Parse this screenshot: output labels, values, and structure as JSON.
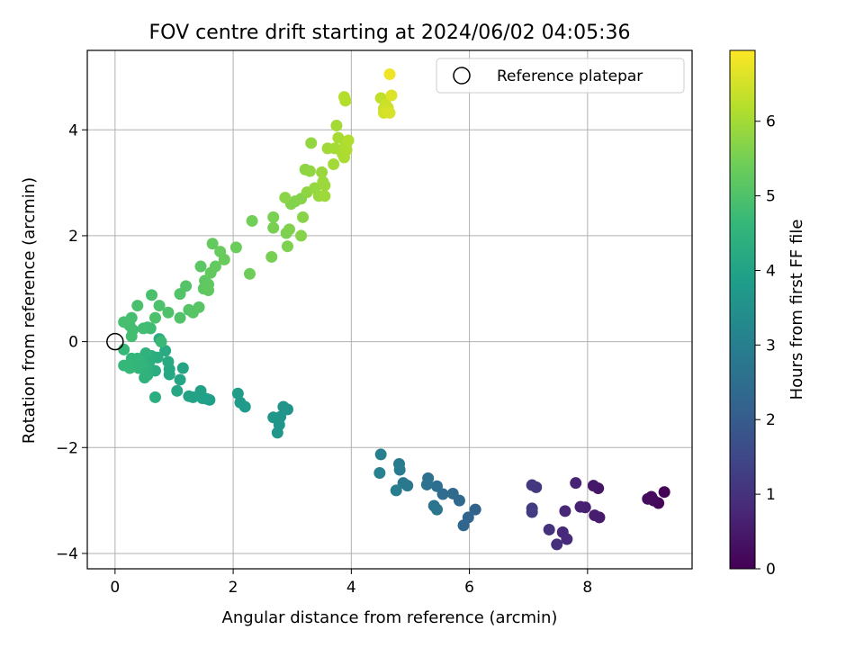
{
  "chart_data": {
    "type": "scatter",
    "title": "FOV centre drift starting at 2024/06/02 04:05:36",
    "xlabel": "Angular distance from reference (arcmin)",
    "ylabel": "Rotation from reference (arcmin)",
    "xlim": [
      -0.47,
      9.77
    ],
    "ylim": [
      -4.29,
      5.5
    ],
    "x_ticks": [
      0,
      2,
      4,
      6,
      8
    ],
    "y_ticks": [
      -4,
      -2,
      0,
      2,
      4
    ],
    "x_tick_labels": [
      "0",
      "2",
      "4",
      "6",
      "8"
    ],
    "y_tick_labels": [
      "−4",
      "−2",
      "0",
      "2",
      "4"
    ],
    "grid": true,
    "legend": {
      "placement": "top-right",
      "entries": [
        "Reference platepar"
      ]
    },
    "reference_point": {
      "x": 0,
      "y": 0
    },
    "colorbar": {
      "label": "Hours from first FF file",
      "colormap": "viridis",
      "range": [
        0,
        6.95
      ],
      "ticks": [
        0,
        1,
        2,
        3,
        4,
        5,
        6
      ],
      "tick_labels": [
        "0",
        "1",
        "2",
        "3",
        "4",
        "5",
        "6"
      ]
    },
    "points": [
      {
        "x": 9.3,
        "y": -2.84,
        "h": 0.05
      },
      {
        "x": 9.2,
        "y": -3.05,
        "h": 0.1
      },
      {
        "x": 9.12,
        "y": -3.0,
        "h": 0.15
      },
      {
        "x": 9.08,
        "y": -2.93,
        "h": 0.18
      },
      {
        "x": 9.02,
        "y": -2.97,
        "h": 0.22
      },
      {
        "x": 8.18,
        "y": -2.77,
        "h": 0.4
      },
      {
        "x": 8.1,
        "y": -2.72,
        "h": 0.45
      },
      {
        "x": 8.2,
        "y": -3.32,
        "h": 0.5
      },
      {
        "x": 8.12,
        "y": -3.28,
        "h": 0.55
      },
      {
        "x": 7.96,
        "y": -3.13,
        "h": 0.6
      },
      {
        "x": 7.88,
        "y": -3.12,
        "h": 0.65
      },
      {
        "x": 7.8,
        "y": -2.67,
        "h": 0.7
      },
      {
        "x": 7.62,
        "y": -3.2,
        "h": 0.75
      },
      {
        "x": 7.58,
        "y": -3.6,
        "h": 0.8
      },
      {
        "x": 7.65,
        "y": -3.73,
        "h": 0.85
      },
      {
        "x": 7.48,
        "y": -3.83,
        "h": 0.95
      },
      {
        "x": 7.35,
        "y": -3.55,
        "h": 1.0
      },
      {
        "x": 7.13,
        "y": -2.75,
        "h": 1.1
      },
      {
        "x": 7.06,
        "y": -2.71,
        "h": 1.15
      },
      {
        "x": 7.06,
        "y": -3.15,
        "h": 1.2
      },
      {
        "x": 7.06,
        "y": -3.22,
        "h": 1.25
      },
      {
        "x": 6.1,
        "y": -3.17,
        "h": 2.2
      },
      {
        "x": 5.98,
        "y": -3.32,
        "h": 2.25
      },
      {
        "x": 5.9,
        "y": -3.47,
        "h": 2.3
      },
      {
        "x": 5.83,
        "y": -3.0,
        "h": 2.35
      },
      {
        "x": 5.72,
        "y": -2.87,
        "h": 2.4
      },
      {
        "x": 5.55,
        "y": -2.88,
        "h": 2.45
      },
      {
        "x": 5.45,
        "y": -2.73,
        "h": 2.5
      },
      {
        "x": 5.3,
        "y": -2.58,
        "h": 2.55
      },
      {
        "x": 5.28,
        "y": -2.7,
        "h": 2.6
      },
      {
        "x": 5.4,
        "y": -3.1,
        "h": 2.65
      },
      {
        "x": 5.45,
        "y": -3.17,
        "h": 2.7
      },
      {
        "x": 4.95,
        "y": -2.72,
        "h": 2.75
      },
      {
        "x": 4.88,
        "y": -2.67,
        "h": 2.8
      },
      {
        "x": 4.81,
        "y": -2.31,
        "h": 2.85
      },
      {
        "x": 4.82,
        "y": -2.42,
        "h": 2.9
      },
      {
        "x": 4.76,
        "y": -2.81,
        "h": 2.95
      },
      {
        "x": 4.5,
        "y": -2.13,
        "h": 3.0
      },
      {
        "x": 4.48,
        "y": -2.48,
        "h": 3.05
      },
      {
        "x": 2.92,
        "y": -1.28,
        "h": 3.55
      },
      {
        "x": 2.85,
        "y": -1.23,
        "h": 3.58
      },
      {
        "x": 2.8,
        "y": -1.42,
        "h": 3.6
      },
      {
        "x": 2.78,
        "y": -1.57,
        "h": 3.62
      },
      {
        "x": 2.75,
        "y": -1.72,
        "h": 3.65
      },
      {
        "x": 2.68,
        "y": -1.43,
        "h": 3.68
      },
      {
        "x": 2.2,
        "y": -1.23,
        "h": 3.75
      },
      {
        "x": 2.12,
        "y": -1.15,
        "h": 3.78
      },
      {
        "x": 2.08,
        "y": -0.98,
        "h": 3.8
      },
      {
        "x": 1.6,
        "y": -1.1,
        "h": 3.9
      },
      {
        "x": 1.55,
        "y": -1.08,
        "h": 3.92
      },
      {
        "x": 1.48,
        "y": -1.07,
        "h": 3.94
      },
      {
        "x": 1.45,
        "y": -0.93,
        "h": 3.96
      },
      {
        "x": 1.32,
        "y": -1.05,
        "h": 3.98
      },
      {
        "x": 1.25,
        "y": -1.03,
        "h": 4.0
      },
      {
        "x": 1.15,
        "y": -0.5,
        "h": 4.05
      },
      {
        "x": 1.1,
        "y": -0.72,
        "h": 4.08
      },
      {
        "x": 1.05,
        "y": -0.93,
        "h": 4.1
      },
      {
        "x": 0.92,
        "y": -0.62,
        "h": 4.15
      },
      {
        "x": 0.92,
        "y": -0.52,
        "h": 4.18
      },
      {
        "x": 0.9,
        "y": -0.38,
        "h": 4.2
      },
      {
        "x": 0.85,
        "y": -0.17,
        "h": 4.22
      },
      {
        "x": 0.75,
        "y": 0.05,
        "h": 4.25
      },
      {
        "x": 0.72,
        "y": -0.3,
        "h": 4.28
      },
      {
        "x": 0.68,
        "y": -0.55,
        "h": 4.3
      },
      {
        "x": 0.68,
        "y": -1.05,
        "h": 4.32
      },
      {
        "x": 0.62,
        "y": -0.27,
        "h": 4.35
      },
      {
        "x": 0.58,
        "y": -0.38,
        "h": 4.38
      },
      {
        "x": 0.55,
        "y": -0.52,
        "h": 4.4
      },
      {
        "x": 0.55,
        "y": -0.48,
        "h": 4.42
      },
      {
        "x": 0.55,
        "y": -0.63,
        "h": 4.44
      },
      {
        "x": 0.52,
        "y": -0.22,
        "h": 4.46
      },
      {
        "x": 0.5,
        "y": -0.68,
        "h": 4.48
      },
      {
        "x": 0.48,
        "y": -0.45,
        "h": 4.5
      },
      {
        "x": 0.45,
        "y": -0.4,
        "h": 4.52
      },
      {
        "x": 0.4,
        "y": -0.5,
        "h": 4.54
      },
      {
        "x": 0.38,
        "y": -0.32,
        "h": 4.56
      },
      {
        "x": 0.32,
        "y": -0.45,
        "h": 4.58
      },
      {
        "x": 0.28,
        "y": -0.32,
        "h": 4.6
      },
      {
        "x": 0.25,
        "y": -0.5,
        "h": 4.62
      },
      {
        "x": 0.15,
        "y": -0.45,
        "h": 4.64
      },
      {
        "x": 0.15,
        "y": -0.15,
        "h": 4.66
      },
      {
        "x": 0.78,
        "y": 0.0,
        "h": 4.7
      },
      {
        "x": 0.6,
        "y": 0.25,
        "h": 4.75
      },
      {
        "x": 0.55,
        "y": 0.27,
        "h": 4.78
      },
      {
        "x": 0.48,
        "y": 0.25,
        "h": 4.8
      },
      {
        "x": 0.3,
        "y": 0.22,
        "h": 4.82
      },
      {
        "x": 0.28,
        "y": 0.1,
        "h": 4.84
      },
      {
        "x": 0.25,
        "y": 0.3,
        "h": 4.86
      },
      {
        "x": 0.28,
        "y": 0.45,
        "h": 4.88
      },
      {
        "x": 0.15,
        "y": 0.37,
        "h": 4.9
      },
      {
        "x": 0.38,
        "y": 0.68,
        "h": 4.92
      },
      {
        "x": 0.62,
        "y": 0.88,
        "h": 4.94
      },
      {
        "x": 0.68,
        "y": 0.45,
        "h": 4.96
      },
      {
        "x": 0.75,
        "y": 0.68,
        "h": 4.98
      },
      {
        "x": 0.9,
        "y": 0.55,
        "h": 5.0
      },
      {
        "x": 1.1,
        "y": 0.45,
        "h": 5.02
      },
      {
        "x": 1.1,
        "y": 0.9,
        "h": 5.04
      },
      {
        "x": 1.2,
        "y": 1.05,
        "h": 5.06
      },
      {
        "x": 1.25,
        "y": 0.6,
        "h": 5.08
      },
      {
        "x": 1.32,
        "y": 0.55,
        "h": 5.1
      },
      {
        "x": 1.42,
        "y": 0.65,
        "h": 5.12
      },
      {
        "x": 1.45,
        "y": 1.42,
        "h": 5.15
      },
      {
        "x": 1.5,
        "y": 1.0,
        "h": 5.18
      },
      {
        "x": 1.52,
        "y": 1.15,
        "h": 5.2
      },
      {
        "x": 1.58,
        "y": 1.08,
        "h": 5.22
      },
      {
        "x": 1.58,
        "y": 0.97,
        "h": 5.24
      },
      {
        "x": 1.62,
        "y": 1.3,
        "h": 5.26
      },
      {
        "x": 1.7,
        "y": 1.42,
        "h": 5.28
      },
      {
        "x": 1.65,
        "y": 1.85,
        "h": 5.3
      },
      {
        "x": 1.78,
        "y": 1.7,
        "h": 5.32
      },
      {
        "x": 1.85,
        "y": 1.55,
        "h": 5.34
      },
      {
        "x": 2.05,
        "y": 1.78,
        "h": 5.36
      },
      {
        "x": 2.28,
        "y": 1.28,
        "h": 5.4
      },
      {
        "x": 2.32,
        "y": 2.28,
        "h": 5.45
      },
      {
        "x": 2.65,
        "y": 1.6,
        "h": 5.5
      },
      {
        "x": 2.68,
        "y": 2.15,
        "h": 5.52
      },
      {
        "x": 2.68,
        "y": 2.35,
        "h": 5.54
      },
      {
        "x": 2.9,
        "y": 2.05,
        "h": 5.56
      },
      {
        "x": 2.92,
        "y": 1.8,
        "h": 5.58
      },
      {
        "x": 2.95,
        "y": 2.12,
        "h": 5.6
      },
      {
        "x": 2.98,
        "y": 2.6,
        "h": 5.62
      },
      {
        "x": 3.05,
        "y": 2.65,
        "h": 5.64
      },
      {
        "x": 3.15,
        "y": 2.7,
        "h": 5.66
      },
      {
        "x": 3.15,
        "y": 2.0,
        "h": 5.68
      },
      {
        "x": 3.18,
        "y": 2.35,
        "h": 5.7
      },
      {
        "x": 2.88,
        "y": 2.72,
        "h": 5.72
      },
      {
        "x": 3.22,
        "y": 3.25,
        "h": 5.75
      },
      {
        "x": 3.25,
        "y": 2.82,
        "h": 5.78
      },
      {
        "x": 3.3,
        "y": 3.22,
        "h": 5.8
      },
      {
        "x": 3.32,
        "y": 3.75,
        "h": 5.82
      },
      {
        "x": 3.38,
        "y": 2.9,
        "h": 5.84
      },
      {
        "x": 3.45,
        "y": 2.75,
        "h": 5.86
      },
      {
        "x": 3.5,
        "y": 3.2,
        "h": 5.88
      },
      {
        "x": 3.52,
        "y": 3.02,
        "h": 5.9
      },
      {
        "x": 3.55,
        "y": 2.95,
        "h": 5.92
      },
      {
        "x": 3.55,
        "y": 2.75,
        "h": 5.94
      },
      {
        "x": 3.6,
        "y": 3.65,
        "h": 5.96
      },
      {
        "x": 3.7,
        "y": 3.35,
        "h": 5.98
      },
      {
        "x": 3.75,
        "y": 4.08,
        "h": 6.0
      },
      {
        "x": 3.72,
        "y": 3.65,
        "h": 6.02
      },
      {
        "x": 3.78,
        "y": 3.85,
        "h": 6.04
      },
      {
        "x": 3.85,
        "y": 3.55,
        "h": 6.06
      },
      {
        "x": 3.88,
        "y": 3.48,
        "h": 6.08
      },
      {
        "x": 3.9,
        "y": 3.72,
        "h": 6.1
      },
      {
        "x": 3.92,
        "y": 3.62,
        "h": 6.12
      },
      {
        "x": 3.95,
        "y": 3.8,
        "h": 6.14
      },
      {
        "x": 3.9,
        "y": 4.55,
        "h": 6.16
      },
      {
        "x": 3.88,
        "y": 4.62,
        "h": 6.18
      },
      {
        "x": 4.5,
        "y": 4.6,
        "h": 6.3
      },
      {
        "x": 4.55,
        "y": 4.4,
        "h": 6.35
      },
      {
        "x": 4.58,
        "y": 4.48,
        "h": 6.4
      },
      {
        "x": 4.62,
        "y": 4.42,
        "h": 6.45
      },
      {
        "x": 4.55,
        "y": 4.32,
        "h": 6.5
      },
      {
        "x": 4.65,
        "y": 4.32,
        "h": 6.55
      },
      {
        "x": 4.68,
        "y": 4.65,
        "h": 6.6
      },
      {
        "x": 4.65,
        "y": 5.05,
        "h": 6.8
      }
    ]
  }
}
